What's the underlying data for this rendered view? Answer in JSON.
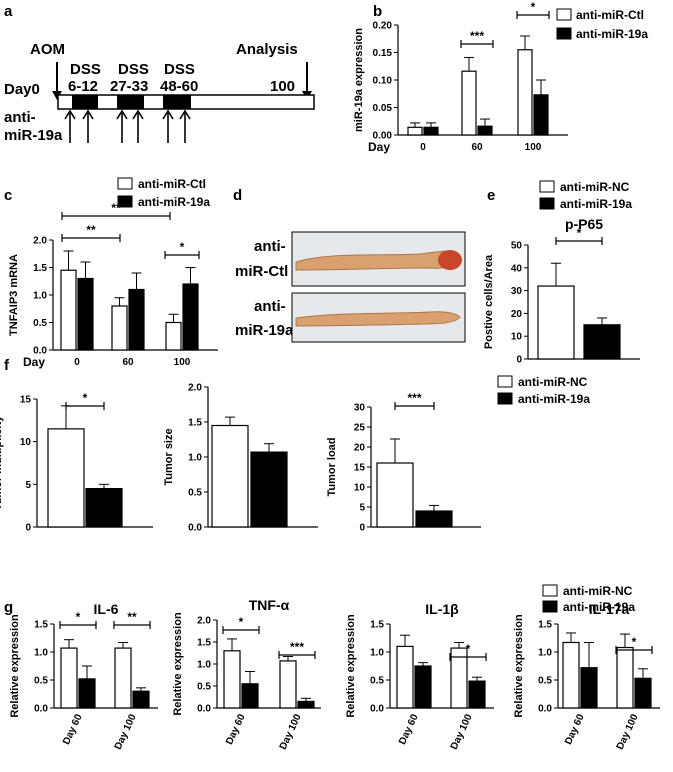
{
  "panel_letters": {
    "a": "a",
    "b": "b",
    "c": "c",
    "d": "d",
    "e": "e",
    "f": "f",
    "g": "g"
  },
  "timeline": {
    "aom": "AOM",
    "day0": "Day0",
    "dss_label": "DSS",
    "dss_windows": [
      "6-12",
      "27-33",
      "48-60"
    ],
    "analysis": "Analysis",
    "day100": "100",
    "group_line1": "anti-",
    "group_line2": "miR-19a"
  },
  "legends": {
    "ctl": "anti-miR-Ctl",
    "nc": "anti-miR-NC",
    "mir19a": "anti-miR-19a"
  },
  "axis_day": "Day",
  "photo": {
    "label1_line1": "anti-",
    "label1_line2": "miR-Ctl",
    "label2_line1": "anti-",
    "label2_line2": "miR-19a"
  },
  "colors": {
    "white_bar": "#ffffff",
    "black_bar": "#000000",
    "tissue": "#d9a070",
    "tissue_red": "#c8462a"
  },
  "chart_data": [
    {
      "id": "b",
      "type": "bar",
      "ylabel": "miR-19a expression",
      "xlabel": "Day",
      "categories": [
        "0",
        "60",
        "100"
      ],
      "ylim": [
        0,
        0.2
      ],
      "yticks": [
        "0.00",
        "0.05",
        "0.10",
        "0.15",
        "0.20"
      ],
      "series": [
        {
          "name": "anti-miR-Ctl",
          "values": [
            0.014,
            0.116,
            0.155
          ],
          "errors": [
            0.008,
            0.025,
            0.025
          ]
        },
        {
          "name": "anti-miR-19a",
          "values": [
            0.014,
            0.016,
            0.073
          ],
          "errors": [
            0.008,
            0.013,
            0.027
          ]
        }
      ],
      "significance": [
        {
          "category": "60",
          "label": "***"
        },
        {
          "category": "100",
          "label": "*"
        }
      ]
    },
    {
      "id": "c",
      "type": "bar",
      "ylabel": "TNFAIP3 mRNA",
      "xlabel": "Day",
      "categories": [
        "0",
        "60",
        "100"
      ],
      "ylim": [
        0,
        2.0
      ],
      "yticks": [
        "0.0",
        "0.5",
        "1.0",
        "1.5",
        "2.0"
      ],
      "series": [
        {
          "name": "anti-miR-Ctl",
          "values": [
            1.45,
            0.8,
            0.5
          ],
          "errors": [
            0.35,
            0.15,
            0.15
          ]
        },
        {
          "name": "anti-miR-19a",
          "values": [
            1.3,
            1.1,
            1.2
          ],
          "errors": [
            0.3,
            0.3,
            0.3
          ]
        }
      ],
      "significance": [
        {
          "span": [
            "0",
            "100"
          ],
          "label": "**"
        },
        {
          "span": [
            "0",
            "60"
          ],
          "label": "**"
        },
        {
          "category": "100",
          "label": "*"
        }
      ]
    },
    {
      "id": "e",
      "type": "bar",
      "title": "p-P65",
      "ylabel": "Postive cells/Area",
      "categories": [
        "anti-miR-NC",
        "anti-miR-19a"
      ],
      "ylim": [
        0,
        50
      ],
      "yticks": [
        "0",
        "10",
        "20",
        "30",
        "40",
        "50"
      ],
      "values": [
        32,
        15
      ],
      "errors": [
        10,
        3
      ],
      "significance": [
        {
          "label": "*"
        }
      ]
    },
    {
      "id": "f1",
      "type": "bar",
      "ylabel": "Tumor multiplicity",
      "categories": [
        "anti-miR-NC",
        "anti-miR-19a"
      ],
      "ylim": [
        0,
        15
      ],
      "yticks": [
        "0",
        "5",
        "10",
        "15"
      ],
      "values": [
        11.5,
        4.5
      ],
      "errors": [
        2.7,
        0.5
      ],
      "significance": [
        {
          "label": "*"
        }
      ]
    },
    {
      "id": "f2",
      "type": "bar",
      "ylabel": "Tumor size",
      "categories": [
        "anti-miR-NC",
        "anti-miR-19a"
      ],
      "ylim": [
        0,
        2.0
      ],
      "yticks": [
        "0.0",
        "0.5",
        "1.0",
        "1.5",
        "2.0"
      ],
      "values": [
        1.45,
        1.07
      ],
      "errors": [
        0.12,
        0.12
      ],
      "significance": []
    },
    {
      "id": "f3",
      "type": "bar",
      "ylabel": "Tumor load",
      "categories": [
        "anti-miR-NC",
        "anti-miR-19a"
      ],
      "ylim": [
        0,
        30
      ],
      "yticks": [
        "0",
        "5",
        "10",
        "15",
        "20",
        "25",
        "30"
      ],
      "values": [
        16,
        4
      ],
      "errors": [
        6,
        1.4
      ],
      "significance": [
        {
          "label": "***"
        }
      ]
    },
    {
      "id": "g1",
      "type": "bar",
      "title": "IL-6",
      "ylabel": "Relative expression",
      "categories": [
        "Day 60",
        "Day 100"
      ],
      "ylim": [
        0,
        1.5
      ],
      "yticks": [
        "0.0",
        "0.5",
        "1.0",
        "1.5"
      ],
      "series": [
        {
          "name": "anti-miR-NC",
          "values": [
            1.07,
            1.07
          ],
          "errors": [
            0.15,
            0.1
          ]
        },
        {
          "name": "anti-miR-19a",
          "values": [
            0.52,
            0.3
          ],
          "errors": [
            0.23,
            0.06
          ]
        }
      ],
      "significance": [
        {
          "category": "Day 60",
          "label": "*"
        },
        {
          "category": "Day 100",
          "label": "**"
        }
      ]
    },
    {
      "id": "g2",
      "type": "bar",
      "title": "TNF-α",
      "ylabel": "Relative expression",
      "categories": [
        "Day 60",
        "Day 100"
      ],
      "ylim": [
        0,
        2.0
      ],
      "yticks": [
        "0.0",
        "0.5",
        "1.0",
        "1.5",
        "2.0"
      ],
      "series": [
        {
          "name": "anti-miR-NC",
          "values": [
            1.3,
            1.07
          ],
          "errors": [
            0.27,
            0.1
          ]
        },
        {
          "name": "anti-miR-19a",
          "values": [
            0.55,
            0.15
          ],
          "errors": [
            0.28,
            0.07
          ]
        }
      ],
      "significance": [
        {
          "category": "Day 60",
          "label": "*"
        },
        {
          "category": "Day 100",
          "label": "***"
        }
      ]
    },
    {
      "id": "g3",
      "type": "bar",
      "title": "IL-1β",
      "ylabel": "Relative expression",
      "categories": [
        "Day 60",
        "Day 100"
      ],
      "ylim": [
        0,
        1.5
      ],
      "yticks": [
        "0.0",
        "0.5",
        "1.0",
        "1.5"
      ],
      "series": [
        {
          "name": "anti-miR-NC",
          "values": [
            1.1,
            1.07
          ],
          "errors": [
            0.2,
            0.1
          ]
        },
        {
          "name": "anti-miR-19a",
          "values": [
            0.75,
            0.48
          ],
          "errors": [
            0.06,
            0.07
          ]
        }
      ],
      "significance": [
        {
          "category": "Day 100",
          "label": "*"
        }
      ]
    },
    {
      "id": "g4",
      "type": "bar",
      "title": "IL-17a",
      "ylabel": "Relative expression",
      "categories": [
        "Day 60",
        "Day 100"
      ],
      "ylim": [
        0,
        1.5
      ],
      "yticks": [
        "0.0",
        "0.5",
        "1.0",
        "1.5"
      ],
      "series": [
        {
          "name": "anti-miR-NC",
          "values": [
            1.17,
            1.08
          ],
          "errors": [
            0.17,
            0.24
          ]
        },
        {
          "name": "anti-miR-19a",
          "values": [
            0.72,
            0.53
          ],
          "errors": [
            0.45,
            0.17
          ]
        }
      ],
      "significance": [
        {
          "category": "Day 100",
          "label": "*"
        }
      ]
    }
  ]
}
